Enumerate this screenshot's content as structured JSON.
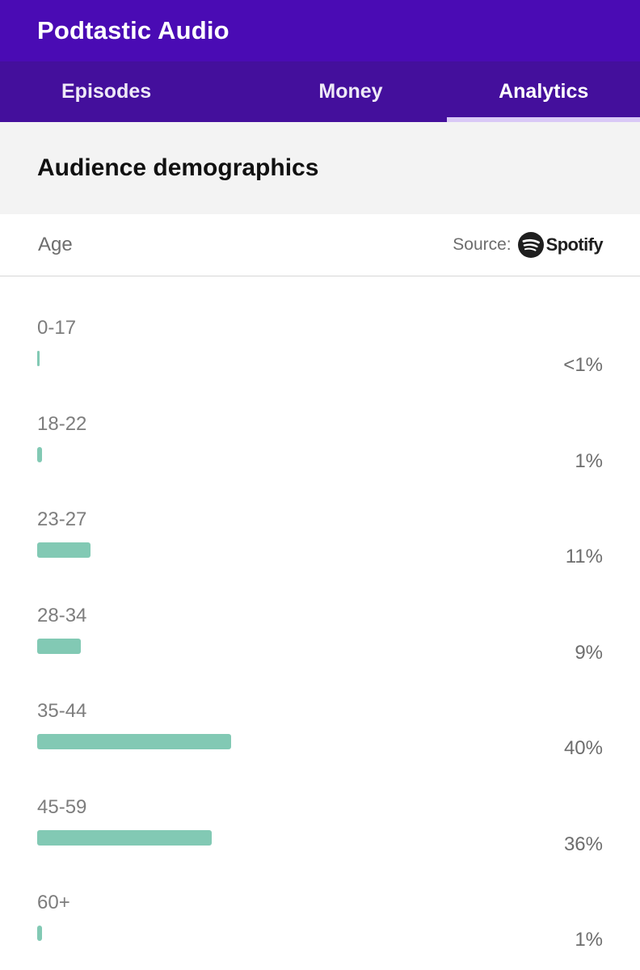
{
  "app": {
    "title": "Podtastic Audio"
  },
  "tabs": [
    {
      "label": "Episodes",
      "active": false
    },
    {
      "label": "Money",
      "active": false
    },
    {
      "label": "Analytics",
      "active": true
    }
  ],
  "section": {
    "title": "Audience demographics"
  },
  "subheader": {
    "label": "Age",
    "source_label": "Source:",
    "source_brand": "Spotify",
    "source_icon": "spotify-icon"
  },
  "colors": {
    "header_bg": "#4a0bb4",
    "tabs_bg": "#440f9c",
    "tab_indicator": "#d9c8f6",
    "bar": "#82c9b4"
  },
  "chart_data": {
    "type": "bar",
    "orientation": "horizontal",
    "categories": [
      "0-17",
      "18-22",
      "23-27",
      "28-34",
      "35-44",
      "45-59",
      "60+"
    ],
    "value_labels": [
      "<1%",
      "1%",
      "11%",
      "9%",
      "40%",
      "36%",
      "1%"
    ],
    "values": [
      0.5,
      1,
      11,
      9,
      40,
      36,
      1
    ],
    "xlim": [
      0,
      100
    ]
  }
}
